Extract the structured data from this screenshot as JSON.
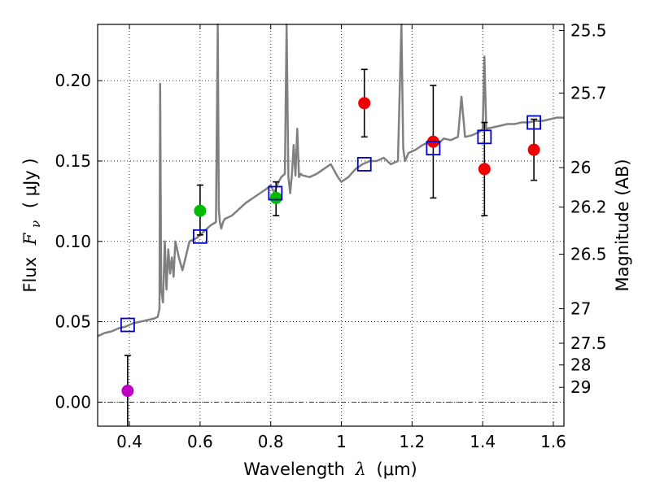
{
  "chart_data": {
    "type": "scatter",
    "xlabel_text": "Wavelength",
    "xlabel_symbol": "λ",
    "xlabel_unit": "(μm)",
    "ylabel_text": "Flux",
    "ylabel_symbol": "F",
    "ylabel_sub": "ν",
    "ylabel_unit": "( μJy )",
    "y2label": "Magnitude (AB)",
    "xlim": [
      0.31,
      1.63
    ],
    "ylim": [
      -0.015,
      0.235
    ],
    "grid": true,
    "xticks": [
      0.4,
      0.6,
      0.8,
      1.0,
      1.2,
      1.4,
      1.6
    ],
    "xtick_labels": [
      "0.4",
      "0.6",
      "0.8",
      "1",
      "1.2",
      "1.4",
      "1.6"
    ],
    "yticks": [
      0.0,
      0.05,
      0.1,
      0.15,
      0.2
    ],
    "ytick_labels": [
      "0.00",
      "0.05",
      "0.10",
      "0.15",
      "0.20"
    ],
    "mag_ticks": [
      {
        "label": "25.5",
        "flux": 0.2312
      },
      {
        "label": "25.7",
        "flux": 0.1923
      },
      {
        "label": "26",
        "flux": 0.1459
      },
      {
        "label": "26.2",
        "flux": 0.1213
      },
      {
        "label": "26.5",
        "flux": 0.092
      },
      {
        "label": "27",
        "flux": 0.0581
      },
      {
        "label": "27.5",
        "flux": 0.0366
      },
      {
        "label": "28",
        "flux": 0.0231
      },
      {
        "label": "29",
        "flux": 0.0092
      }
    ],
    "zero_line": 0.0,
    "model_spectrum": {
      "color": "#808080",
      "x": [
        0.31,
        0.33,
        0.35,
        0.37,
        0.39,
        0.41,
        0.43,
        0.45,
        0.47,
        0.48,
        0.485,
        0.487,
        0.49,
        0.495,
        0.5,
        0.505,
        0.51,
        0.515,
        0.52,
        0.525,
        0.53,
        0.54,
        0.55,
        0.57,
        0.59,
        0.61,
        0.63,
        0.645,
        0.65,
        0.653,
        0.656,
        0.66,
        0.665,
        0.67,
        0.69,
        0.71,
        0.73,
        0.75,
        0.77,
        0.79,
        0.8,
        0.81,
        0.82,
        0.83,
        0.84,
        0.845,
        0.85,
        0.855,
        0.86,
        0.865,
        0.87,
        0.875,
        0.88,
        0.885,
        0.89,
        0.91,
        0.93,
        0.95,
        0.97,
        0.99,
        1.0,
        1.02,
        1.04,
        1.06,
        1.08,
        1.1,
        1.12,
        1.14,
        1.16,
        1.17,
        1.175,
        1.18,
        1.19,
        1.21,
        1.23,
        1.25,
        1.27,
        1.29,
        1.31,
        1.33,
        1.34,
        1.35,
        1.37,
        1.39,
        1.4,
        1.405,
        1.41,
        1.43,
        1.45,
        1.47,
        1.49,
        1.51,
        1.53,
        1.55,
        1.57,
        1.59,
        1.61,
        1.63
      ],
      "y": [
        0.041,
        0.043,
        0.044,
        0.046,
        0.047,
        0.049,
        0.05,
        0.051,
        0.052,
        0.053,
        0.058,
        0.198,
        0.07,
        0.062,
        0.1,
        0.07,
        0.095,
        0.08,
        0.09,
        0.078,
        0.1,
        0.09,
        0.082,
        0.1,
        0.102,
        0.106,
        0.11,
        0.112,
        0.235,
        0.12,
        0.112,
        0.108,
        0.112,
        0.114,
        0.116,
        0.12,
        0.124,
        0.127,
        0.13,
        0.133,
        0.135,
        0.13,
        0.136,
        0.14,
        0.142,
        0.235,
        0.14,
        0.13,
        0.142,
        0.16,
        0.141,
        0.17,
        0.14,
        0.142,
        0.141,
        0.14,
        0.142,
        0.145,
        0.148,
        0.14,
        0.137,
        0.14,
        0.145,
        0.148,
        0.15,
        0.15,
        0.152,
        0.148,
        0.15,
        0.235,
        0.158,
        0.15,
        0.155,
        0.157,
        0.16,
        0.162,
        0.16,
        0.164,
        0.163,
        0.165,
        0.19,
        0.165,
        0.166,
        0.168,
        0.17,
        0.215,
        0.17,
        0.171,
        0.172,
        0.173,
        0.173,
        0.174,
        0.174,
        0.175,
        0.175,
        0.176,
        0.177,
        0.177
      ]
    },
    "model_photometry": {
      "color": "#0000cc",
      "marker": "open-square",
      "x": [
        0.395,
        0.6,
        0.813,
        1.065,
        1.26,
        1.405,
        1.545
      ],
      "y": [
        0.048,
        0.103,
        0.13,
        0.148,
        0.158,
        0.165,
        0.174
      ]
    },
    "observed_points": [
      {
        "x": 0.395,
        "y": 0.007,
        "yerr_low": 0.03,
        "yerr_high": 0.022,
        "color": "#c000c0"
      },
      {
        "x": 0.6,
        "y": 0.119,
        "yerr_low": 0.015,
        "yerr_high": 0.016,
        "color": "#00bb00"
      },
      {
        "x": 0.815,
        "y": 0.127,
        "yerr_low": 0.011,
        "yerr_high": 0.01,
        "color": "#00bb00"
      },
      {
        "x": 1.065,
        "y": 0.186,
        "yerr_low": 0.021,
        "yerr_high": 0.021,
        "color": "#ee0000"
      },
      {
        "x": 1.26,
        "y": 0.162,
        "yerr_low": 0.035,
        "yerr_high": 0.035,
        "color": "#ee0000"
      },
      {
        "x": 1.405,
        "y": 0.145,
        "yerr_low": 0.029,
        "yerr_high": 0.029,
        "color": "#ee0000"
      },
      {
        "x": 1.545,
        "y": 0.157,
        "yerr_low": 0.019,
        "yerr_high": 0.019,
        "color": "#ee0000"
      }
    ]
  }
}
